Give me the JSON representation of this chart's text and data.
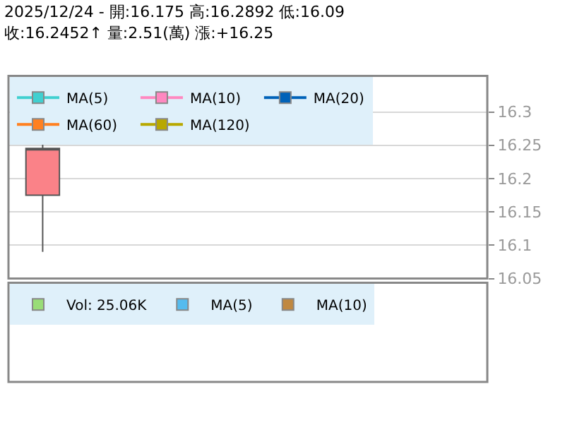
{
  "chart_data": [
    {
      "type": "candlestick",
      "title": "2025/12/24 - 開:16.175 高:16.2892 低:16.09",
      "subtitle": "收:16.2452↑ 量:2.51(萬) 漲:+16.25",
      "categories": [
        null,
        null,
        null,
        null,
        null,
        null,
        null
      ],
      "ohlc": [
        [
          16.175,
          16.2892,
          16.09,
          16.2452
        ],
        null,
        null,
        null,
        null,
        null,
        null
      ],
      "color": "#fa8288",
      "series": [
        {
          "name": "MA(5)",
          "color": "#40d0d0",
          "type": "line",
          "values": [
            null,
            null,
            null,
            null,
            null,
            null,
            null
          ]
        },
        {
          "name": "MA(10)",
          "color": "#ff88c0",
          "type": "line",
          "values": [
            null,
            null,
            null,
            null,
            null,
            null,
            null
          ]
        },
        {
          "name": "MA(20)",
          "color": "#0062b8",
          "type": "line",
          "values": [
            null,
            null,
            null,
            null,
            null,
            null,
            null
          ]
        },
        {
          "name": "MA(60)",
          "color": "#ff8020",
          "type": "line",
          "values": [
            null,
            null,
            null,
            null,
            null,
            null,
            null
          ]
        },
        {
          "name": "MA(120)",
          "color": "#b8a800",
          "type": "line",
          "values": [
            null,
            null,
            null,
            null,
            null,
            null,
            null
          ]
        }
      ],
      "ylim": [
        16.05,
        16.354
      ],
      "yticks": [
        16.05,
        16.1,
        16.15,
        16.2,
        16.25,
        16.3
      ],
      "grid": "y",
      "legend": "top",
      "marker": "square",
      "tick_labels": "y"
    },
    {
      "type": "other",
      "series": [
        {
          "name": "Vol: 25.06K",
          "color": "#99dd77"
        },
        {
          "name": "MA(5)",
          "color": "#55bbee"
        },
        {
          "name": "MA(10)",
          "color": "#c08840"
        }
      ],
      "legend": "top"
    }
  ]
}
